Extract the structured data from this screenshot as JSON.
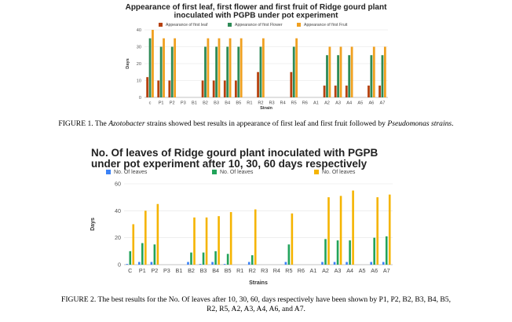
{
  "chart_data": [
    {
      "type": "bar",
      "title": "Appearance of first leaf, first flower and first fruit of Ridge gourd plant inoculated with PGPB under pot experiment",
      "xlabel": "Strain",
      "ylabel": "Days",
      "ylim": [
        0,
        40
      ],
      "yticks": [
        0,
        10,
        20,
        30,
        40
      ],
      "legend_position": "top",
      "categories": [
        "c",
        "P1",
        "P2",
        "P3",
        "B1",
        "B2",
        "B3",
        "B4",
        "B5",
        "R1",
        "R2",
        "R3",
        "R4",
        "R5",
        "R6",
        "A1",
        "A2",
        "A3",
        "A4",
        "A5",
        "A6",
        "A7"
      ],
      "series": [
        {
          "name": "Appearance of first leaf",
          "color": "#b7410e",
          "values": [
            12,
            10,
            10,
            0,
            0,
            10,
            10,
            10,
            10,
            0,
            15,
            0,
            0,
            15,
            0,
            0,
            7,
            7,
            7,
            0,
            7,
            7
          ]
        },
        {
          "name": "Appearance of first Flower",
          "color": "#2e8b57",
          "values": [
            35,
            30,
            30,
            0,
            0,
            30,
            30,
            30,
            30,
            0,
            30,
            0,
            0,
            30,
            0,
            0,
            25,
            25,
            25,
            0,
            25,
            25
          ]
        },
        {
          "name": "Appearance of first Fruit",
          "color": "#f0a020",
          "values": [
            40,
            35,
            35,
            0,
            0,
            35,
            35,
            35,
            35,
            0,
            35,
            0,
            0,
            35,
            0,
            0,
            30,
            30,
            30,
            0,
            30,
            30
          ]
        }
      ]
    },
    {
      "type": "bar",
      "title": "No. Of leaves of Ridge gourd plant inoculated with PGPB under pot experiment after 10, 30, 60 days respectively",
      "xlabel": "Strains",
      "ylabel": "Days",
      "ylim": [
        0,
        60
      ],
      "yticks": [
        0,
        20,
        40,
        60
      ],
      "legend_position": "top",
      "categories": [
        "C",
        "P1",
        "P2",
        "P3",
        "B1",
        "B2",
        "B3",
        "B4",
        "B5",
        "R1",
        "R2",
        "R3",
        "R4",
        "R5",
        "R6",
        "A1",
        "A2",
        "A3",
        "A4",
        "A5",
        "A6",
        "A7"
      ],
      "series": [
        {
          "name": "No. Of leaves",
          "color": "#3b82f6",
          "values": [
            0.5,
            2,
            2,
            0,
            0,
            2,
            0.5,
            2,
            0.5,
            0,
            2,
            0,
            0,
            2,
            0,
            0,
            2,
            2,
            2,
            0,
            2,
            2
          ]
        },
        {
          "name": "No. Of leaves",
          "color": "#22a35a",
          "values": [
            10,
            16,
            15,
            0,
            0,
            9,
            9,
            10,
            8,
            0,
            7,
            0,
            0,
            15,
            0,
            0,
            19,
            18,
            18,
            0,
            20,
            21
          ]
        },
        {
          "name": "No. Of leaves",
          "color": "#f5b400",
          "values": [
            30,
            40,
            45,
            0,
            0,
            35,
            35,
            36,
            39,
            0,
            41,
            0,
            0,
            38,
            0,
            0,
            50,
            51,
            55,
            0,
            50,
            52
          ]
        }
      ]
    }
  ],
  "captions": {
    "fig1_prefix": "FIGURE 1. The ",
    "fig1_italic1": "Azotobacter",
    "fig1_middle": " strains showed best results in appearance of first leaf and first fruit followed by ",
    "fig1_italic2": "Pseudomonas strains",
    "fig1_suffix": ".",
    "fig2_line1": "FIGURE 2. The best results for the No. Of leaves after 10, 30, 60, days respectively have been shown by P1, P2, B2, B3, B4, B5,",
    "fig2_line2": "R2, R5, A2, A3, A4, A6, and A7."
  }
}
